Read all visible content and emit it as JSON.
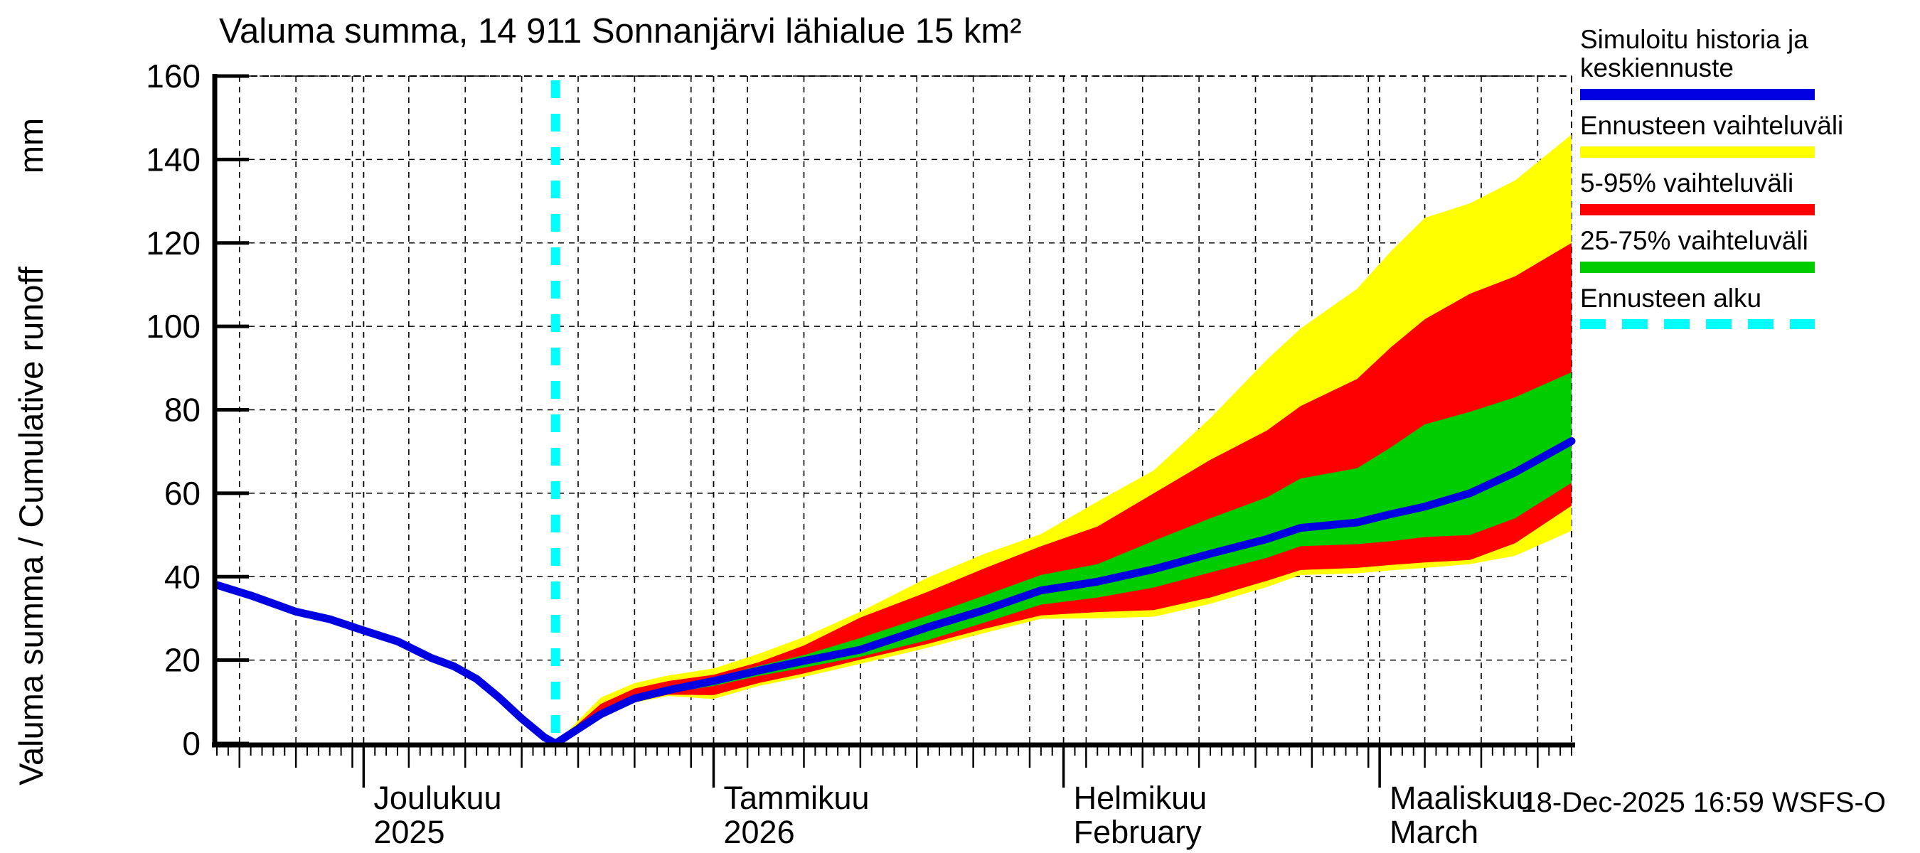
{
  "title": "Valuma summa, 14 911 Sonnanjärvi lähialue 15 km²",
  "timestamp": "18-Dec-2025 16:59 WSFS-O",
  "y_axis": {
    "title_main": "Valuma summa / Cumulative runoff",
    "title_unit": "mm",
    "ticks": [
      0,
      20,
      40,
      60,
      80,
      100,
      120,
      140,
      160
    ]
  },
  "x_axis": {
    "months": [
      {
        "label": "Joulukuu",
        "sublabel": "2025",
        "start_day": 13
      },
      {
        "label": "Tammikuu",
        "sublabel": "2026",
        "start_day": 44
      },
      {
        "label": "Helmikuu",
        "sublabel": "February",
        "start_day": 75
      },
      {
        "label": "Maaliskuu",
        "sublabel": "March",
        "start_day": 103
      }
    ]
  },
  "legend": [
    {
      "label": "Simuloitu historia ja keskiennuste",
      "color": "#0000e0",
      "style": "solid"
    },
    {
      "label": "Ennusteen vaihteluväli",
      "color": "#ffff00",
      "style": "solid"
    },
    {
      "label": "5-95% vaihteluväli",
      "color": "#ff0000",
      "style": "solid"
    },
    {
      "label": "25-75% vaihteluväli",
      "color": "#00cc00",
      "style": "solid"
    },
    {
      "label": "Ennusteen alku",
      "color": "#00ffff",
      "style": "dashed"
    }
  ],
  "chart_data": {
    "type": "area",
    "title": "Valuma summa, 14 911 Sonnanjärvi lähialue 15 km²",
    "ylabel": "Valuma summa / Cumulative runoff (mm)",
    "ylim": [
      0,
      160
    ],
    "grid": true,
    "legend_position": "top-right",
    "x_unit": "days, day 0 = 18-Nov-2025, day 120 = 18-Mar-2026",
    "forecast_start_day": 30,
    "forecast_start_date": "18-Dec-2025",
    "history": {
      "name": "Simuloitu historia (cumulative runoff mm)",
      "days": [
        0,
        3,
        7,
        10,
        13,
        16,
        19,
        21,
        23,
        25,
        27,
        29,
        30
      ],
      "values": [
        38,
        35.5,
        31.6,
        29.8,
        27.1,
        24.5,
        20.5,
        18.5,
        15.5,
        11,
        6,
        1.5,
        0
      ]
    },
    "forecast": {
      "days": [
        30,
        34,
        37,
        40,
        44,
        48,
        52,
        57,
        63,
        68,
        73,
        78,
        83,
        88,
        93,
        96,
        101,
        104,
        107,
        111,
        115,
        120
      ],
      "median": [
        0,
        7,
        10.8,
        12.8,
        15,
        17.5,
        19.8,
        22.5,
        27.9,
        32,
        36.7,
        38.8,
        41.8,
        45.5,
        49,
        51.7,
        53,
        55,
        56.8,
        60,
        65,
        72.5
      ],
      "max": [
        0,
        11,
        14.5,
        16.3,
        18,
        21.5,
        25.5,
        31.6,
        39.8,
        45.5,
        50.2,
        58,
        65.5,
        78,
        92,
        99.5,
        109,
        118,
        126,
        129.5,
        135,
        146
      ],
      "p95": [
        0,
        9.5,
        13.2,
        15,
        16.5,
        19.5,
        23.5,
        30.2,
        36.4,
        42,
        47.3,
        52,
        60,
        68,
        75,
        80.9,
        87.4,
        95,
        101.7,
        107.8,
        112,
        120
      ],
      "p75": [
        0,
        7.8,
        11.6,
        13.6,
        15.8,
        18.6,
        21.2,
        25.3,
        30.7,
        35.5,
        40.4,
        43,
        48.6,
        54,
        59,
        63.5,
        66,
        71,
        76.5,
        79.5,
        83,
        89
      ],
      "p25": [
        0,
        6.5,
        10.3,
        12.1,
        13.8,
        16.2,
        18.2,
        20.8,
        24.8,
        29,
        33.3,
        35,
        37.4,
        41,
        44.5,
        47.3,
        47.8,
        48.5,
        49.5,
        50,
        54,
        62.5
      ],
      "p5": [
        0,
        6.2,
        10,
        11.7,
        11.6,
        14.5,
        16.8,
        20.1,
        23.9,
        27.5,
        30.7,
        31.5,
        32,
        35,
        39,
        41.6,
        42.1,
        42.8,
        43.4,
        44,
        48,
        57
      ],
      "min": [
        0,
        6,
        9.8,
        11.4,
        10.7,
        13.8,
        16,
        19.1,
        23,
        26.5,
        29.9,
        30,
        30.4,
        33.5,
        37.5,
        40.4,
        40.8,
        41.5,
        42.1,
        43,
        45,
        51
      ]
    },
    "colors": {
      "median_line": "#0000e0",
      "band_minmax": "#ffff00",
      "band_5_95": "#ff0000",
      "band_25_75": "#00cc00",
      "forecast_start_line": "#00ffff",
      "grid": "#000000"
    },
    "gridline_step_y_mm": 20,
    "gridline_step_x_days": 5
  }
}
